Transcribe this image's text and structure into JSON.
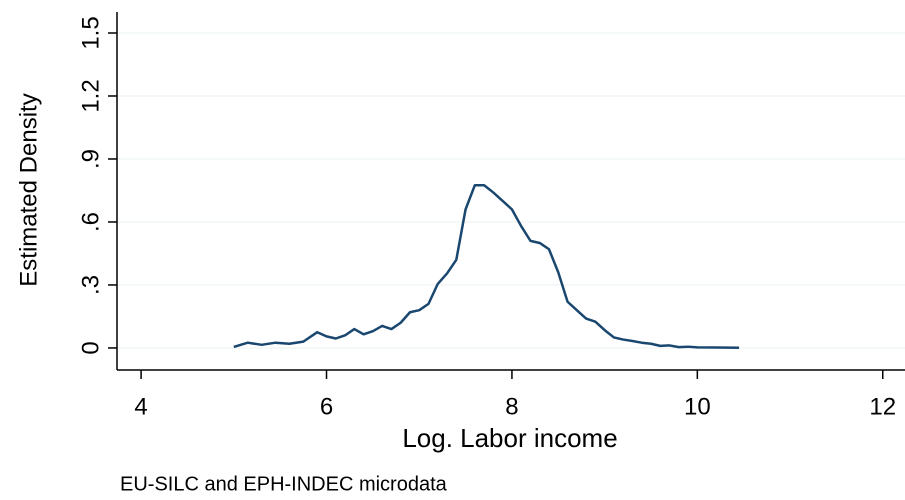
{
  "chart_data": {
    "type": "line",
    "x_label": "Log. Labor income",
    "y_label": "Estimated Density",
    "note": "EU-SILC and EPH-INDEC microdata",
    "x": [
      5.0,
      5.15,
      5.3,
      5.45,
      5.6,
      5.75,
      5.9,
      6.0,
      6.1,
      6.2,
      6.3,
      6.4,
      6.5,
      6.6,
      6.7,
      6.8,
      6.9,
      7.0,
      7.1,
      7.2,
      7.3,
      7.4,
      7.5,
      7.6,
      7.7,
      7.8,
      7.9,
      8.0,
      8.1,
      8.2,
      8.3,
      8.4,
      8.5,
      8.6,
      8.7,
      8.8,
      8.9,
      9.0,
      9.1,
      9.2,
      9.3,
      9.4,
      9.5,
      9.6,
      9.7,
      9.8,
      9.9,
      10.0,
      10.2,
      10.45
    ],
    "series": [
      {
        "color": "#1a476f",
        "values": [
          0.005,
          0.025,
          0.015,
          0.025,
          0.02,
          0.03,
          0.075,
          0.055,
          0.045,
          0.06,
          0.09,
          0.065,
          0.08,
          0.105,
          0.09,
          0.12,
          0.17,
          0.18,
          0.21,
          0.305,
          0.355,
          0.42,
          0.66,
          0.775,
          0.775,
          0.74,
          0.7,
          0.66,
          0.58,
          0.51,
          0.5,
          0.47,
          0.36,
          0.22,
          0.18,
          0.14,
          0.125,
          0.085,
          0.05,
          0.04,
          0.033,
          0.025,
          0.02,
          0.01,
          0.012,
          0.004,
          0.006,
          0.003,
          0.002,
          0.001
        ]
      }
    ],
    "xlim": [
      3.74,
      12.24
    ],
    "xticks": [
      4,
      6,
      8,
      10,
      12
    ],
    "ylim": [
      -0.105,
      1.6
    ],
    "yticks": [
      0,
      {
        "value": 0.3,
        "label": ".3"
      },
      {
        "value": 0.6,
        "label": ".6"
      },
      {
        "value": 0.9,
        "label": ".9"
      },
      1.2,
      1.5
    ],
    "grid": true
  }
}
